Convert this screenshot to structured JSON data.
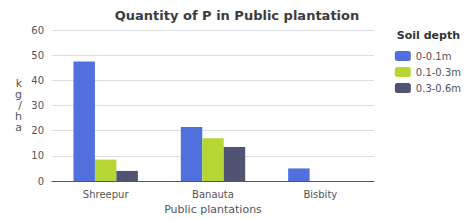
{
  "chart_data": {
    "type": "bar",
    "title": "Quantity of P in Public plantation",
    "xlabel": "Public plantations",
    "ylabel": "k\ng\n/\nh\na",
    "categories": [
      "Shreepur",
      "Banauta",
      "Bisbity"
    ],
    "series": [
      {
        "name": "0-0.1m",
        "values": [
          47.5,
          21.5,
          5.0
        ]
      },
      {
        "name": "0.1-0.3m",
        "values": [
          8.5,
          17.0,
          0.0
        ]
      },
      {
        "name": "0.3-0.6m",
        "values": [
          4.0,
          13.5,
          0.0
        ]
      }
    ],
    "ylim": [
      0,
      60
    ],
    "yticks": [
      0,
      10,
      20,
      30,
      40,
      50,
      60
    ],
    "grid": true,
    "legend": "upper right",
    "legend_title": "Soil depth"
  }
}
